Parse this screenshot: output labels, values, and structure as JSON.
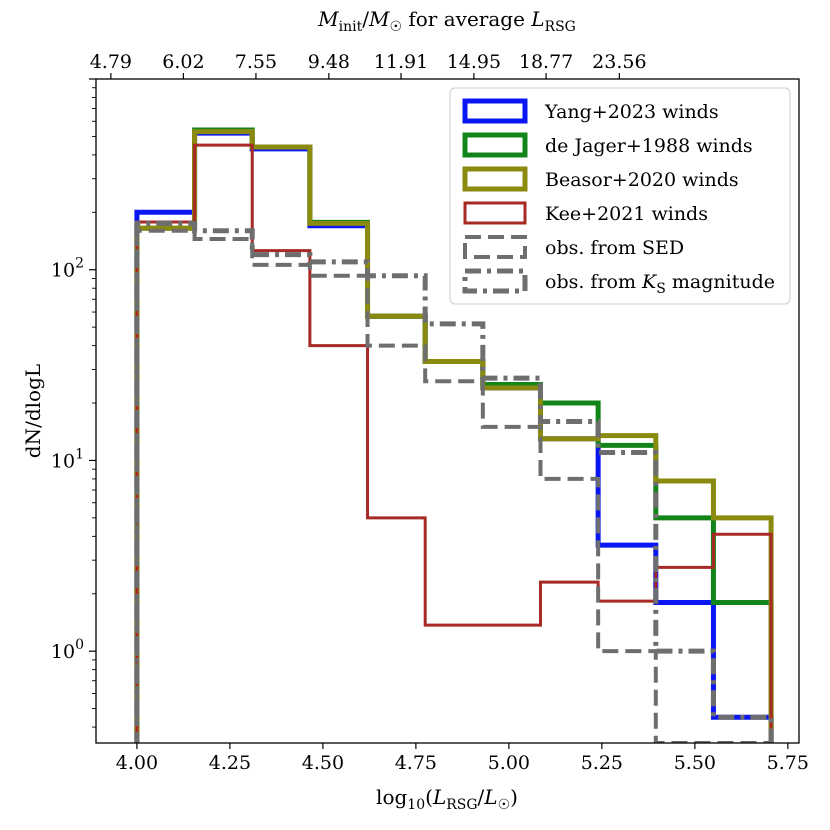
{
  "chart_data": {
    "type": "histogram-step",
    "xlabel": "log₁₀(L_RSG/L☉)",
    "xlabel_parts": {
      "prefix": "log",
      "sub": "10",
      "open": "(",
      "L": "L",
      "Lsub": "RSG",
      "slash": "/",
      "L2": "L",
      "L2sub": "☉",
      "close": ")"
    },
    "ylabel": "dN/dlogL",
    "top_xlabel": "M_init/M☉ for average L_RSG",
    "top_xlabel_parts": {
      "M": "M",
      "Msub": "init",
      "slash": "/",
      "M2": "M",
      "M2sub": "☉",
      "mid": " for average ",
      "L": "L",
      "Lsub": "RSG"
    },
    "xlim": [
      3.89,
      5.78
    ],
    "ylim": [
      0.33,
      1000
    ],
    "yscale": "log",
    "x_ticks": [
      4.0,
      4.25,
      4.5,
      4.75,
      5.0,
      5.25,
      5.5,
      5.75
    ],
    "x_tick_labels": [
      "4.00",
      "4.25",
      "4.50",
      "4.75",
      "5.00",
      "5.25",
      "5.50",
      "5.75"
    ],
    "y_ticks": [
      {
        "value": 1,
        "base": "10",
        "exp": "0"
      },
      {
        "value": 10,
        "base": "10",
        "exp": "1"
      },
      {
        "value": 100,
        "base": "10",
        "exp": "2"
      }
    ],
    "top_ticks": [
      {
        "x": 3.93,
        "label": "4.79"
      },
      {
        "x": 4.125,
        "label": "6.02"
      },
      {
        "x": 4.32,
        "label": "7.55"
      },
      {
        "x": 4.516,
        "label": "9.48"
      },
      {
        "x": 4.71,
        "label": "11.91"
      },
      {
        "x": 4.906,
        "label": "14.95"
      },
      {
        "x": 5.1,
        "label": "18.77"
      },
      {
        "x": 5.297,
        "label": "23.56"
      }
    ],
    "bin_edges": [
      4.0,
      4.155,
      4.31,
      4.465,
      4.62,
      4.775,
      4.93,
      5.085,
      5.24,
      5.395,
      5.55,
      5.705
    ],
    "series": [
      {
        "name": "Yang+2023 winds",
        "color": "#0b16f5",
        "style": "solid",
        "width": 5,
        "values": [
          200,
          520,
          430,
          170,
          57,
          33,
          24,
          13,
          3.6,
          1.8,
          0.45
        ]
      },
      {
        "name": "de Jager+1988 winds",
        "color": "#12851a",
        "style": "solid",
        "width": 5,
        "values": [
          165,
          540,
          440,
          177,
          57,
          33,
          25,
          20,
          12,
          5.0,
          1.8
        ]
      },
      {
        "name": "Beasor+2020 winds",
        "color": "#8a8a0f",
        "style": "solid",
        "width": 5,
        "values": [
          165,
          530,
          440,
          175,
          57,
          33,
          24,
          13,
          13.5,
          7.8,
          5.0
        ]
      },
      {
        "name": "Kee+2021 winds",
        "color": "#a82a26",
        "style": "solid",
        "width": 3,
        "values": [
          178,
          450,
          126,
          40,
          5.0,
          1.37,
          1.37,
          2.3,
          1.83,
          2.75,
          4.1
        ]
      },
      {
        "name": "obs. from SED",
        "color": "#6e6e6e",
        "style": "dashed",
        "width": 4,
        "values": [
          160,
          145,
          106,
          93,
          40,
          26,
          15,
          8.0,
          1.0,
          0.33,
          0.33
        ]
      },
      {
        "name": "obs. from K_S magnitude",
        "label_parts": {
          "pre": "obs. from ",
          "K": "K",
          "sub": "S",
          "post": " magnitude"
        },
        "color": "#6e6e6e",
        "style": "dashdot",
        "width": 5,
        "values": [
          175,
          160,
          120,
          110,
          93,
          52,
          27,
          16,
          11,
          1.0,
          0.45
        ]
      }
    ],
    "legend_location": "top-right"
  }
}
